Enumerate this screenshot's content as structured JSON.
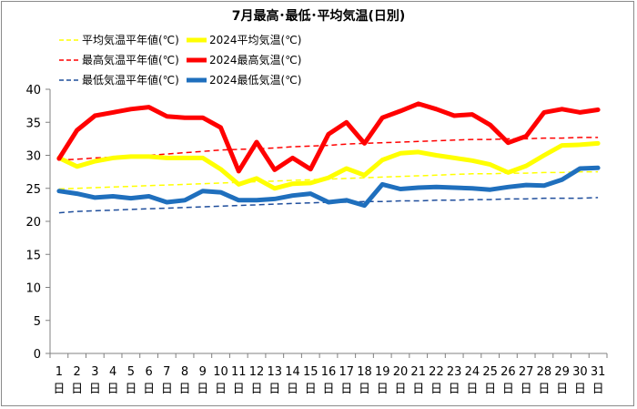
{
  "chart_data": {
    "type": "line",
    "title": "7月最高･最低･平均気温(日別)",
    "categories": [
      "1",
      "2",
      "3",
      "4",
      "5",
      "6",
      "7",
      "8",
      "9",
      "10",
      "11",
      "12",
      "13",
      "14",
      "15",
      "16",
      "17",
      "18",
      "19",
      "20",
      "21",
      "22",
      "23",
      "24",
      "25",
      "26",
      "27",
      "28",
      "29",
      "30",
      "31"
    ],
    "category_suffix": "日",
    "ylim": [
      0,
      40
    ],
    "yticks": [
      0,
      5,
      10,
      15,
      20,
      25,
      30,
      35,
      40
    ],
    "grid": false,
    "legend_position": "top",
    "series": [
      {
        "name": "平均気温平年値(℃)",
        "color": "#ffff00",
        "style": "dashed",
        "width": 1.5,
        "values": [
          24.9,
          25.0,
          25.1,
          25.2,
          25.3,
          25.4,
          25.5,
          25.6,
          25.7,
          25.8,
          25.9,
          26.0,
          26.1,
          26.2,
          26.3,
          26.4,
          26.5,
          26.6,
          26.7,
          26.8,
          26.9,
          27.0,
          27.1,
          27.2,
          27.2,
          27.3,
          27.3,
          27.4,
          27.4,
          27.5,
          27.5
        ]
      },
      {
        "name": "2024平均気温(℃)",
        "color": "#ffff00",
        "style": "solid",
        "width": 5,
        "values": [
          29.6,
          28.3,
          29.1,
          29.6,
          29.8,
          29.8,
          29.6,
          29.6,
          29.6,
          27.9,
          25.6,
          26.5,
          25.0,
          25.7,
          25.8,
          26.6,
          28.0,
          27.0,
          29.3,
          30.3,
          30.5,
          30.0,
          29.6,
          29.2,
          28.6,
          27.4,
          28.4,
          30.0,
          31.5,
          31.6,
          31.8
        ]
      },
      {
        "name": "最高気温平年値(℃)",
        "color": "#ff0000",
        "style": "dashed",
        "width": 1.5,
        "values": [
          29.3,
          29.4,
          29.6,
          29.7,
          29.9,
          30.0,
          30.2,
          30.4,
          30.6,
          30.8,
          30.9,
          31.0,
          31.1,
          31.3,
          31.4,
          31.5,
          31.7,
          31.8,
          31.9,
          32.0,
          32.1,
          32.2,
          32.3,
          32.4,
          32.4,
          32.5,
          32.5,
          32.6,
          32.6,
          32.7,
          32.7
        ]
      },
      {
        "name": "2024最高気温(℃)",
        "color": "#ff0000",
        "style": "solid",
        "width": 5,
        "values": [
          29.5,
          33.8,
          36.0,
          36.5,
          37.0,
          37.3,
          35.9,
          35.7,
          35.7,
          34.2,
          27.6,
          32.0,
          27.8,
          29.6,
          27.9,
          33.2,
          35.0,
          31.8,
          35.7,
          36.7,
          37.8,
          37.0,
          36.0,
          36.2,
          34.6,
          31.9,
          32.9,
          36.5,
          37.0,
          36.5,
          36.9
        ]
      },
      {
        "name": "最低気温平年値(℃)",
        "color": "#1f4e9c",
        "style": "dashed",
        "width": 1.5,
        "values": [
          21.3,
          21.5,
          21.6,
          21.7,
          21.8,
          21.9,
          22.0,
          22.1,
          22.2,
          22.3,
          22.4,
          22.5,
          22.6,
          22.7,
          22.8,
          22.9,
          22.9,
          23.0,
          23.0,
          23.1,
          23.1,
          23.2,
          23.2,
          23.3,
          23.3,
          23.4,
          23.4,
          23.5,
          23.5,
          23.5,
          23.6
        ]
      },
      {
        "name": "2024最低気温(℃)",
        "color": "#1f6fbd",
        "style": "solid",
        "width": 5,
        "values": [
          24.6,
          24.2,
          23.6,
          23.8,
          23.5,
          23.8,
          22.9,
          23.2,
          24.6,
          24.4,
          23.2,
          23.2,
          23.4,
          23.9,
          24.2,
          22.9,
          23.2,
          22.4,
          25.6,
          24.9,
          25.1,
          25.2,
          25.1,
          25.0,
          24.8,
          25.2,
          25.5,
          25.4,
          26.3,
          28.0,
          28.1
        ]
      }
    ]
  }
}
